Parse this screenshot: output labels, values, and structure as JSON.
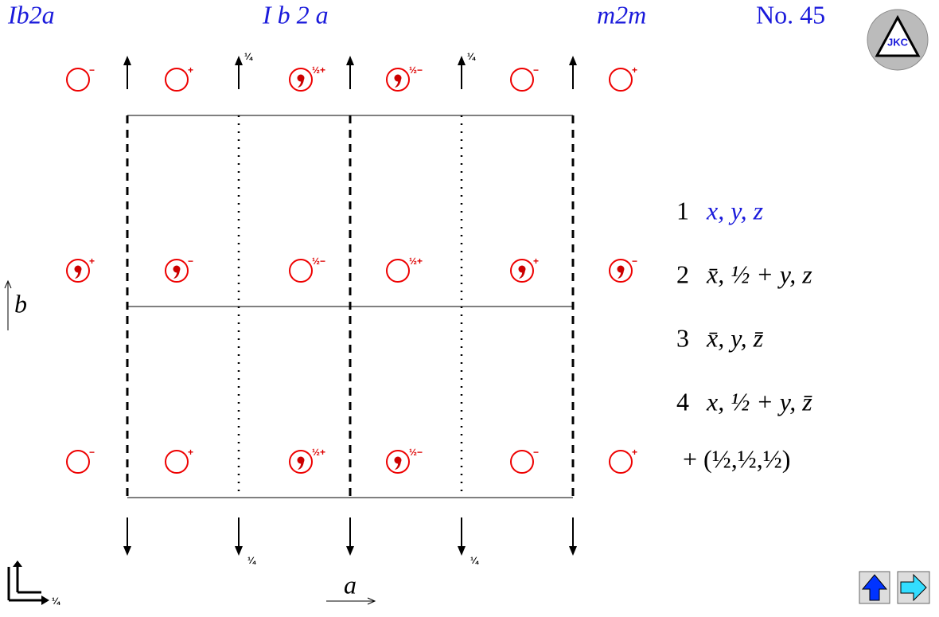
{
  "header": {
    "short_symbol": "Ib2a",
    "full_symbol": "I b 2 a",
    "point_group": "m2m",
    "number": "No. 45"
  },
  "logo": {
    "text": "JKC"
  },
  "symbols": [
    [
      {
        "sign": "−",
        "comma": false
      },
      {
        "sign": "+",
        "comma": false
      },
      {
        "sign": "½+",
        "comma": true
      },
      {
        "sign": "½−",
        "comma": true
      },
      {
        "sign": "−",
        "comma": false
      },
      {
        "sign": "+",
        "comma": false
      }
    ],
    [
      {
        "sign": "+",
        "comma": true
      },
      {
        "sign": "−",
        "comma": true
      },
      {
        "sign": "½−",
        "comma": false
      },
      {
        "sign": "½+",
        "comma": false
      },
      {
        "sign": "+",
        "comma": true
      },
      {
        "sign": "−",
        "comma": true
      }
    ],
    [
      {
        "sign": "−",
        "comma": false
      },
      {
        "sign": "+",
        "comma": false
      },
      {
        "sign": "½+",
        "comma": true
      },
      {
        "sign": "½−",
        "comma": true
      },
      {
        "sign": "−",
        "comma": false
      },
      {
        "sign": "+",
        "comma": false
      }
    ]
  ],
  "axis_fractions": {
    "top": [
      "¼",
      "¼"
    ],
    "bottom": [
      "¼",
      "¼"
    ],
    "corner": "¼"
  },
  "axes": {
    "a": "a",
    "b": "b"
  },
  "positions": [
    {
      "number": "1",
      "coords": "x, y, z"
    },
    {
      "number": "2",
      "coords": "x̄, ½ + y, z"
    },
    {
      "number": "3",
      "coords": "x̄, y, z̄"
    },
    {
      "number": "4",
      "coords": "x, ½ + y, z̄"
    }
  ],
  "centering": "+ (½,½,½)"
}
